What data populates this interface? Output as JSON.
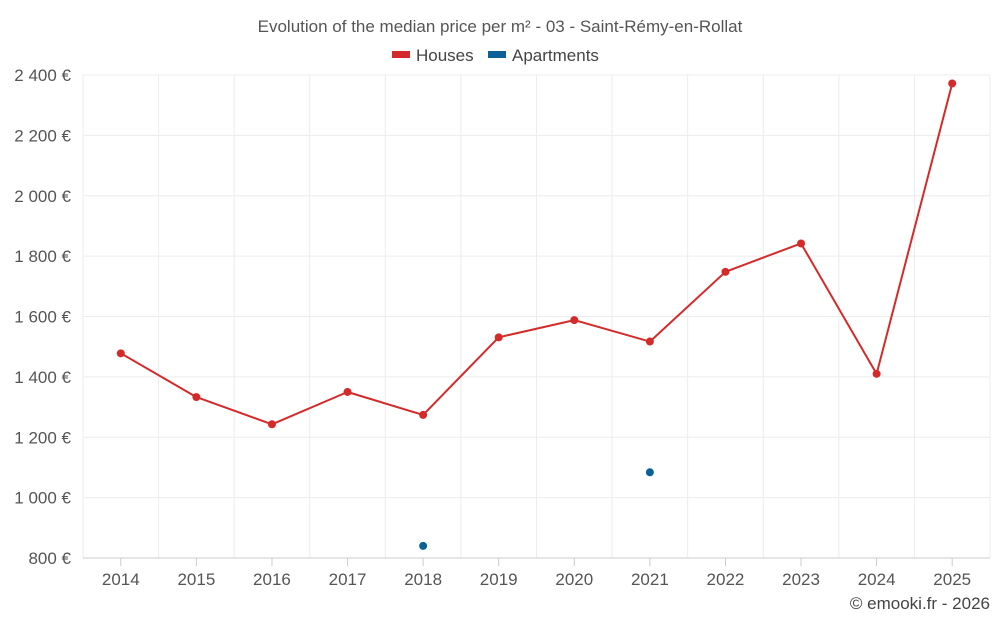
{
  "chart_data": {
    "type": "line",
    "title": "Evolution of the median price per m² - 03 - Saint-Rémy-en-Rollat",
    "xlabel": "",
    "ylabel": "",
    "categories": [
      "2014",
      "2015",
      "2016",
      "2017",
      "2018",
      "2019",
      "2020",
      "2021",
      "2022",
      "2023",
      "2024",
      "2025"
    ],
    "ylim": [
      800,
      2400
    ],
    "y_ticks": [
      800,
      1000,
      1200,
      1400,
      1600,
      1800,
      2000,
      2200,
      2400
    ],
    "y_tick_labels": [
      "800 €",
      "1 000 €",
      "1 200 €",
      "1 400 €",
      "1 600 €",
      "1 800 €",
      "2 000 €",
      "2 200 €",
      "2 400 €"
    ],
    "grid": true,
    "legend_position": "top-center",
    "series": [
      {
        "name": "Houses",
        "color": "#d42a2a",
        "values": [
          1478,
          1333,
          1243,
          1350,
          1274,
          1531,
          1588,
          1517,
          1748,
          1842,
          1410,
          2372
        ]
      },
      {
        "name": "Apartments",
        "color": "#0a6298",
        "values": [
          null,
          null,
          null,
          null,
          840,
          null,
          null,
          1084,
          null,
          null,
          null,
          null
        ]
      }
    ]
  },
  "credit": "© emooki.fr - 2026"
}
